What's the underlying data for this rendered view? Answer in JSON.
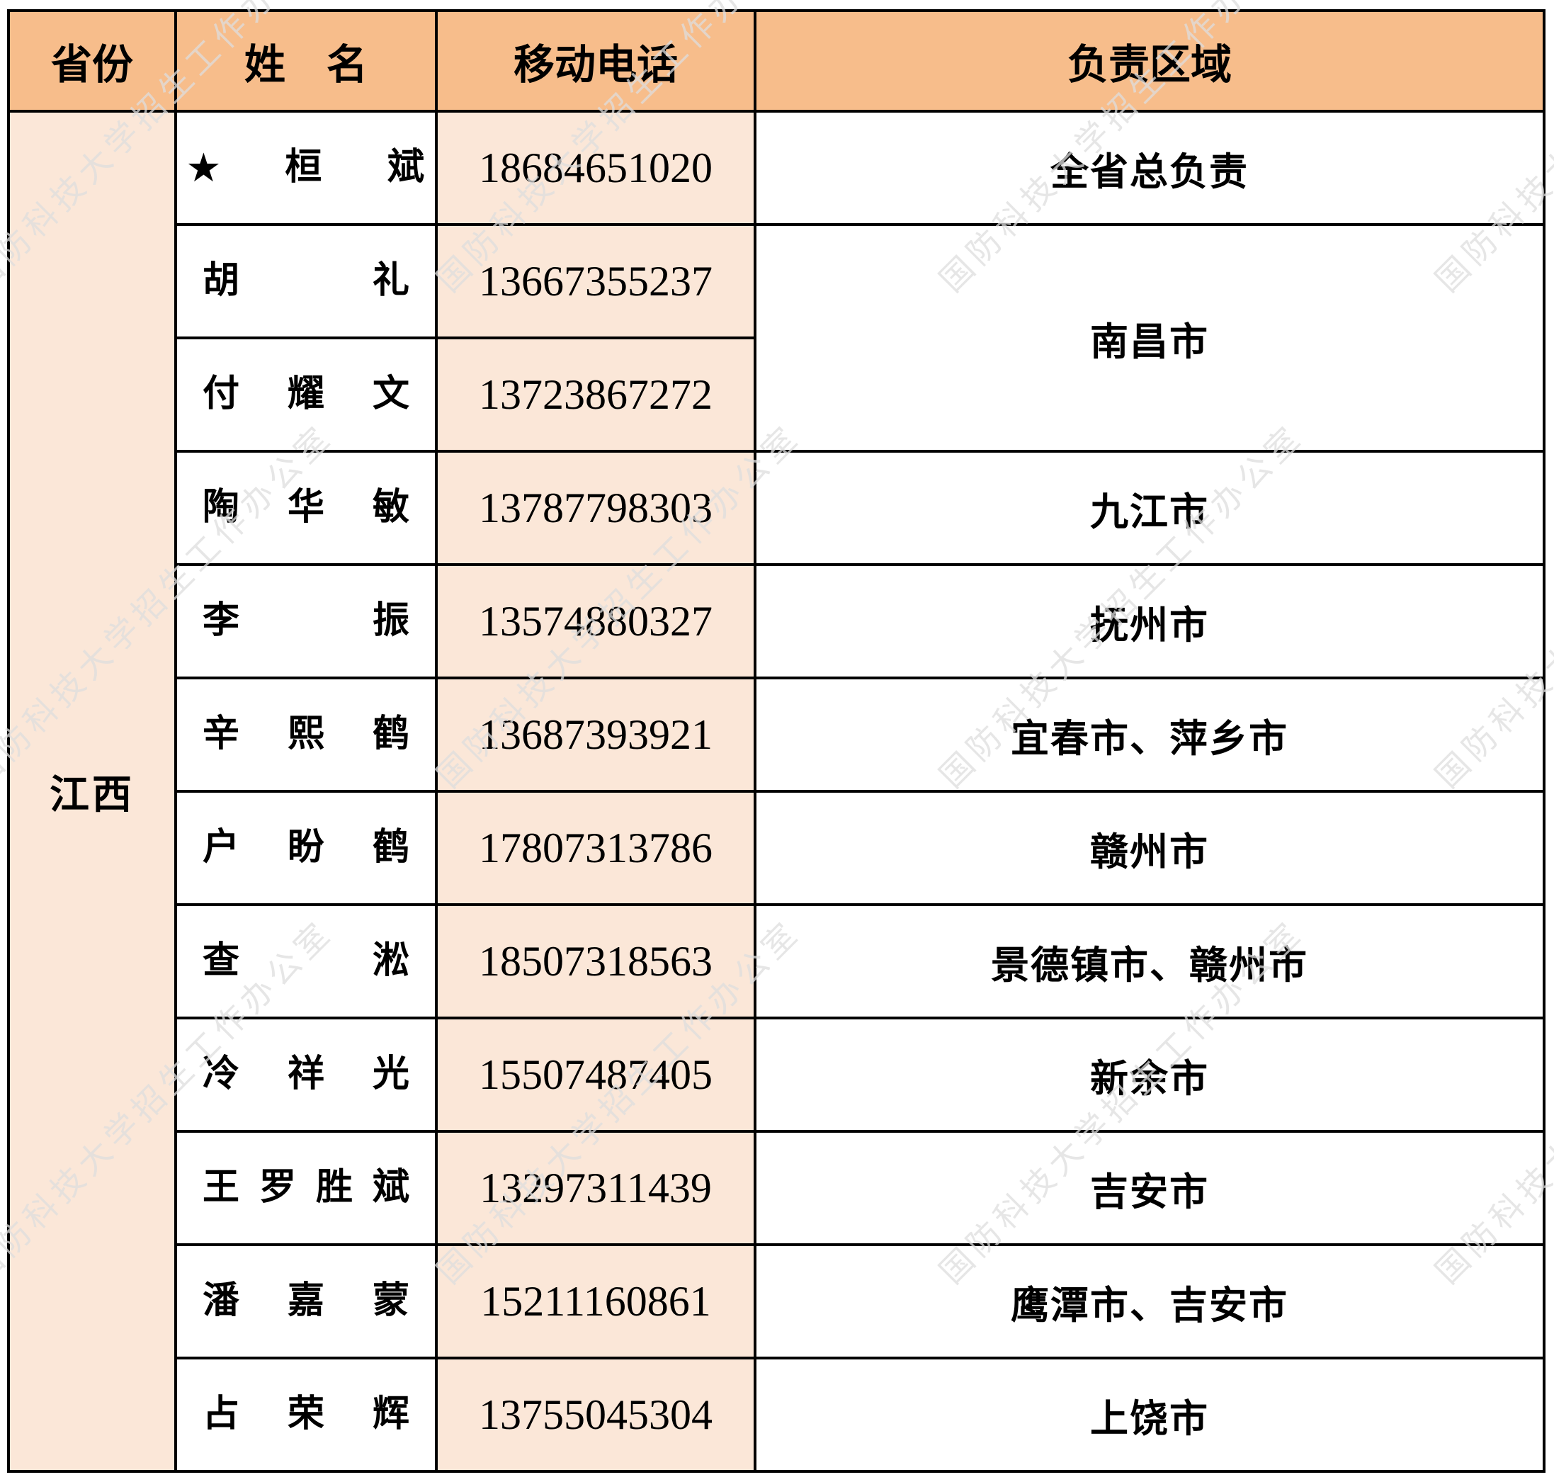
{
  "colors": {
    "header_bg": "#F7BD8B",
    "cell_peach_bg": "#FBE7D8",
    "border": "#000000",
    "text": "#000000",
    "watermark": "#dedede"
  },
  "watermark": {
    "text": "国防科技大学招生工作办公室"
  },
  "icons": {
    "star": "★"
  },
  "table": {
    "headers": [
      {
        "label": "省份"
      },
      {
        "label": "姓　名"
      },
      {
        "label": "移动电话"
      },
      {
        "label": "负责区域"
      }
    ],
    "province": {
      "label": "江西",
      "rowspan": 12
    },
    "rows": [
      {
        "star": true,
        "name": "桓斌",
        "phone": "18684651020",
        "region": "全省总负责",
        "region_rowspan": 1
      },
      {
        "star": false,
        "name": "胡礼",
        "phone": "13667355237",
        "region": "南昌市",
        "region_rowspan": 2
      },
      {
        "star": false,
        "name": "付耀文",
        "phone": "13723867272",
        "region": null
      },
      {
        "star": false,
        "name": "陶华敏",
        "phone": "13787798303",
        "region": "九江市",
        "region_rowspan": 1
      },
      {
        "star": false,
        "name": "李振",
        "phone": "13574880327",
        "region": "抚州市",
        "region_rowspan": 1
      },
      {
        "star": false,
        "name": "辛熙鹤",
        "phone": "13687393921",
        "region": "宜春市、萍乡市",
        "region_rowspan": 1
      },
      {
        "star": false,
        "name": "户盼鹤",
        "phone": "17807313786",
        "region": "赣州市",
        "region_rowspan": 1
      },
      {
        "star": false,
        "name": "查淞",
        "phone": "18507318563",
        "region": "景德镇市、赣州市",
        "region_rowspan": 1
      },
      {
        "star": false,
        "name": "冷祥光",
        "phone": "15507487405",
        "region": "新余市",
        "region_rowspan": 1
      },
      {
        "star": false,
        "name": "王罗胜斌",
        "phone": "13297311439",
        "region": "吉安市",
        "region_rowspan": 1
      },
      {
        "star": false,
        "name": "潘嘉蒙",
        "phone": "15211160861",
        "region": "鹰潭市、吉安市",
        "region_rowspan": 1
      },
      {
        "star": false,
        "name": "占荣辉",
        "phone": "13755045304",
        "region": "上饶市",
        "region_rowspan": 1
      }
    ]
  }
}
